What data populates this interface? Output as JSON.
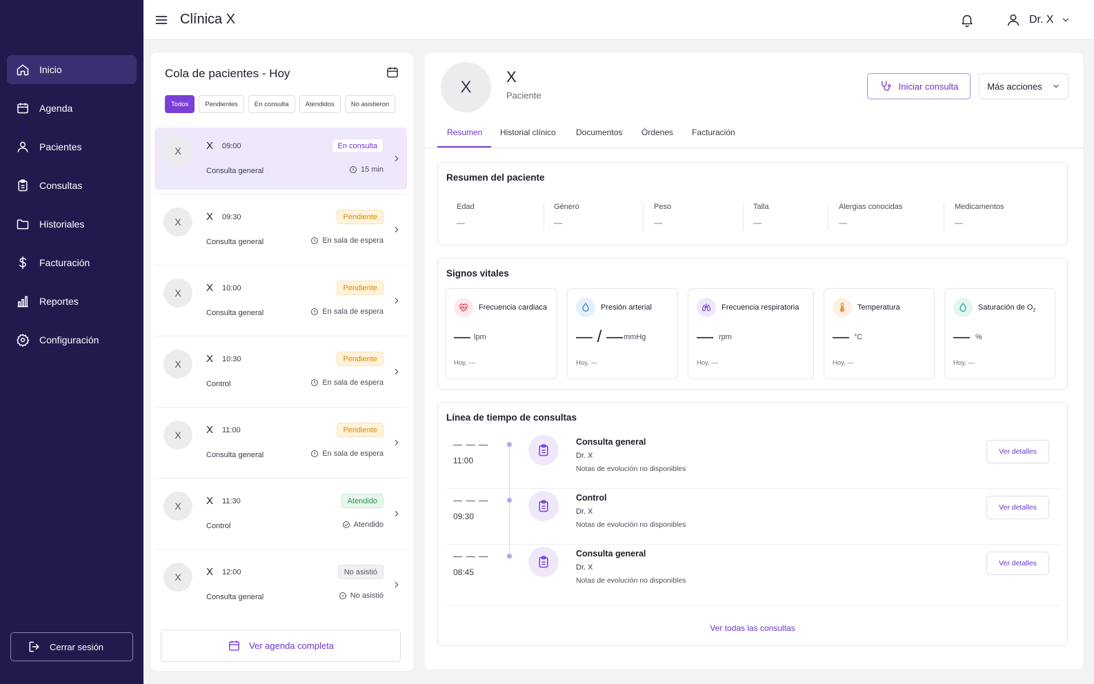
{
  "app": {
    "title": "Clínica X",
    "accent": "#7a3fd6",
    "sidebar_bg": "#221a4d"
  },
  "sidebar": {
    "items": [
      {
        "label": "Inicio",
        "icon": "home-icon"
      },
      {
        "label": "Agenda",
        "icon": "calendar-icon"
      },
      {
        "label": "Pacientes",
        "icon": "user-icon"
      },
      {
        "label": "Consultas",
        "icon": "clipboard-icon"
      },
      {
        "label": "Historiales",
        "icon": "folder-icon"
      },
      {
        "label": "Facturación",
        "icon": "dollar-icon"
      },
      {
        "label": "Reportes",
        "icon": "bar-chart-icon"
      },
      {
        "label": "Configuración",
        "icon": "gear-icon"
      }
    ],
    "logout_label": "Cerrar sesión"
  },
  "header": {
    "user_name": "Dr. X"
  },
  "queue": {
    "title": "Cola de pacientes - Hoy",
    "filters": [
      "Todos",
      "Pendientes",
      "En consulta",
      "Atendidos",
      "No asistieron"
    ],
    "items": [
      {
        "initial": "X",
        "name": "X",
        "time": "09:00",
        "type": "Consulta general",
        "badge": "En consulta",
        "status": "15 min"
      },
      {
        "initial": "X",
        "name": "X",
        "time": "09:30",
        "type": "Consulta general",
        "badge": "Pendiente",
        "status": "En sala de espera"
      },
      {
        "initial": "X",
        "name": "X",
        "time": "10:00",
        "type": "Consulta general",
        "badge": "Pendiente",
        "status": "En sala de espera"
      },
      {
        "initial": "X",
        "name": "X",
        "time": "10:30",
        "type": "Control",
        "badge": "Pendiente",
        "status": "En sala de espera"
      },
      {
        "initial": "X",
        "name": "X",
        "time": "11:00",
        "type": "Consulta general",
        "badge": "Pendiente",
        "status": "En sala de espera"
      },
      {
        "initial": "X",
        "name": "X",
        "time": "11:30",
        "type": "Control",
        "badge": "Atendido",
        "status": "Atendido"
      },
      {
        "initial": "X",
        "name": "X",
        "time": "12:00",
        "type": "Consulta general",
        "badge": "No asistió",
        "status": "No asistió"
      }
    ],
    "agenda_label": "Ver agenda completa"
  },
  "patient": {
    "initial": "X",
    "name": "X",
    "role": "Paciente",
    "start_label": "Iniciar consulta",
    "more_label": "Más acciones",
    "tabs": [
      "Resumen",
      "Historial clínico",
      "Documentos",
      "Órdenes",
      "Facturación"
    ],
    "summary": {
      "title": "Resumen del paciente",
      "fields": [
        {
          "label": "Edad",
          "value": "—"
        },
        {
          "label": "Género",
          "value": "—"
        },
        {
          "label": "Peso",
          "value": "—"
        },
        {
          "label": "Talla",
          "value": "—"
        },
        {
          "label": "Alergias conocidas",
          "value": "—"
        },
        {
          "label": "Medicamentos",
          "value": "—"
        }
      ]
    },
    "vitals": {
      "title": "Signos vitales",
      "items": [
        {
          "label": "Frecuencia cardiaca",
          "value": "—",
          "unit": "lpm",
          "footer": "Hoy, —",
          "icon": "heart-icon"
        },
        {
          "label": "Presión arterial",
          "value": "— / —",
          "unit": "mmHg",
          "footer": "Hoy, —",
          "icon": "drop-icon"
        },
        {
          "label": "Frecuencia respiratoria",
          "value": "—",
          "unit": "rpm",
          "footer": "Hoy, —",
          "icon": "lungs-icon"
        },
        {
          "label": "Temperatura",
          "value": "—",
          "unit": "°C",
          "footer": "Hoy, —",
          "icon": "thermometer-icon"
        },
        {
          "label": "Saturación de O",
          "sub": "2",
          "value": "—",
          "unit": "%",
          "footer": "Hoy, —",
          "icon": "oxygen-drop-icon"
        }
      ]
    },
    "timeline": {
      "title": "Línea de tiempo de consultas",
      "items": [
        {
          "date": "— — —",
          "time": "11:00",
          "title": "Consulta general",
          "doctor": "Dr. X",
          "notes": "Notas de evolución no disponibles",
          "button": "Ver detalles"
        },
        {
          "date": "— — —",
          "time": "09:30",
          "title": "Control",
          "doctor": "Dr. X",
          "notes": "Notas de evolución no disponibles",
          "button": "Ver detalles"
        },
        {
          "date": "— — —",
          "time": "08:45",
          "title": "Consulta general",
          "doctor": "Dr. X",
          "notes": "Notas de evolución no disponibles",
          "button": "Ver detalles"
        }
      ],
      "see_all": "Ver todas las consultas"
    }
  }
}
